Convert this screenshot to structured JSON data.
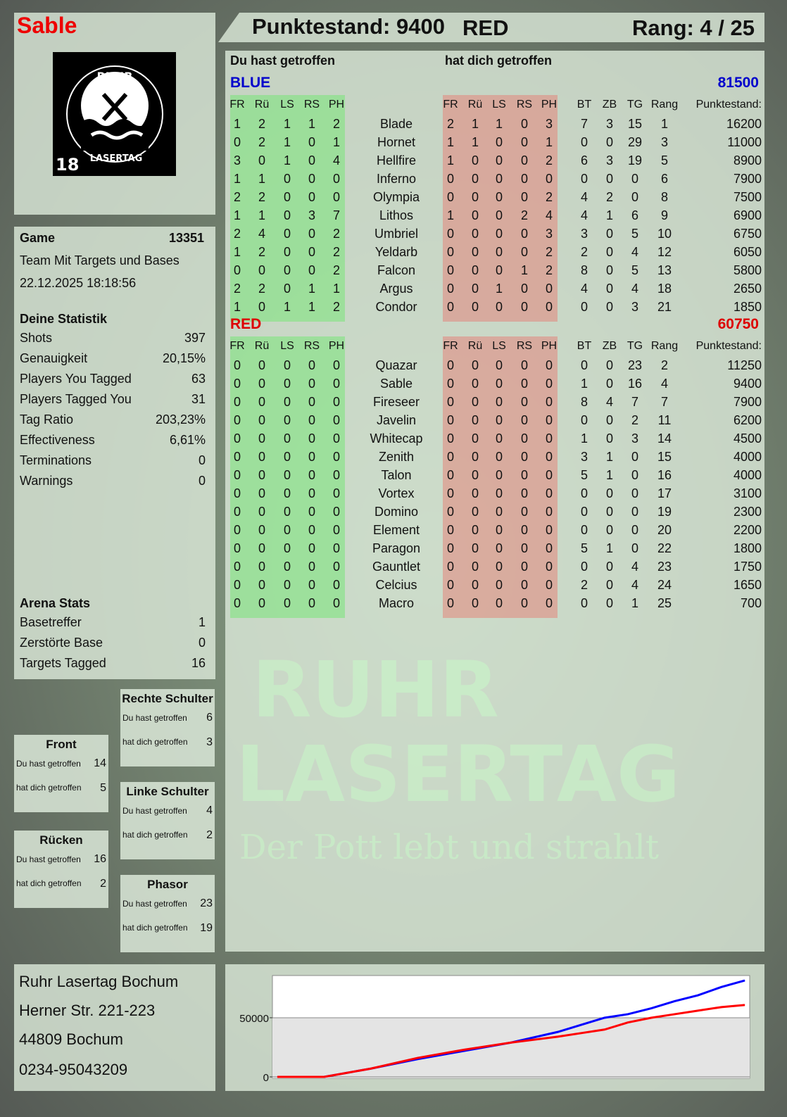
{
  "player": {
    "name": "Sable",
    "score_label": "Punktestand: 9400",
    "team": "RED",
    "rank_label": "Rang: 4 / 25"
  },
  "logo": {
    "text": "RUHR LASERTAG",
    "age": "18"
  },
  "watermark": {
    "line1": "RUHR",
    "line2": "LASERTAG",
    "line3": "Der Pott lebt und strahlt"
  },
  "game": {
    "label": "Game",
    "id": "13351",
    "mode": "Team Mit Targets und Bases",
    "datetime": "22.12.2025 18:18:56"
  },
  "stats": {
    "title": "Deine Statistik",
    "items": [
      {
        "label": "Shots",
        "value": "397"
      },
      {
        "label": "Genauigkeit",
        "value": "20,15%"
      },
      {
        "label": "Players You Tagged",
        "value": "63"
      },
      {
        "label": "Players Tagged You",
        "value": "31"
      },
      {
        "label": "Tag Ratio",
        "value": "203,23%"
      },
      {
        "label": "Effectiveness",
        "value": "6,61%"
      },
      {
        "label": "Terminations",
        "value": "0"
      },
      {
        "label": "Warnings",
        "value": "0"
      }
    ]
  },
  "arena": {
    "title": "Arena Stats",
    "items": [
      {
        "label": "Basetreffer",
        "value": "1"
      },
      {
        "label": "Zerstörte Base",
        "value": "0"
      },
      {
        "label": "Targets Tagged",
        "value": "16"
      }
    ]
  },
  "body_parts": [
    {
      "title": "Rechte Schulter",
      "hit_label": "Du hast getroffen",
      "hit": "6",
      "got_label": "hat dich getroffen",
      "got": "3"
    },
    {
      "title": "Front",
      "hit_label": "Du hast getroffen",
      "hit": "14",
      "got_label": "hat dich getroffen",
      "got": "5"
    },
    {
      "title": "Linke Schulter",
      "hit_label": "Du hast getroffen",
      "hit": "4",
      "got_label": "hat dich getroffen",
      "got": "2"
    },
    {
      "title": "Rücken",
      "hit_label": "Du hast getroffen",
      "hit": "16",
      "got_label": "hat dich getroffen",
      "got": "2"
    },
    {
      "title": "Phasor",
      "hit_label": "Du hast getroffen",
      "hit": "23",
      "got_label": "hat dich getroffen",
      "got": "19"
    }
  ],
  "address": [
    "Ruhr Lasertag Bochum",
    "Herner Str. 221-223",
    "44809 Bochum",
    "0234-95043209"
  ],
  "table": {
    "you_hit": "Du hast getroffen",
    "hit_you": "hat dich getroffen",
    "columns": [
      "FR",
      "Rü",
      "LS",
      "RS",
      "PH",
      "",
      "FR",
      "Rü",
      "LS",
      "RS",
      "PH",
      "BT",
      "ZB",
      "TG",
      "Rang",
      "Punktestand:"
    ],
    "teams": [
      {
        "name": "BLUE",
        "total": "81500",
        "color": "#0000cc",
        "rows": [
          [
            "1",
            "2",
            "1",
            "1",
            "2",
            "Blade",
            "2",
            "1",
            "1",
            "0",
            "3",
            "7",
            "3",
            "15",
            "1",
            "16200"
          ],
          [
            "0",
            "2",
            "1",
            "0",
            "1",
            "Hornet",
            "1",
            "1",
            "0",
            "0",
            "1",
            "0",
            "0",
            "29",
            "3",
            "11000"
          ],
          [
            "3",
            "0",
            "1",
            "0",
            "4",
            "Hellfire",
            "1",
            "0",
            "0",
            "0",
            "2",
            "6",
            "3",
            "19",
            "5",
            "8900"
          ],
          [
            "1",
            "1",
            "0",
            "0",
            "0",
            "Inferno",
            "0",
            "0",
            "0",
            "0",
            "0",
            "0",
            "0",
            "0",
            "6",
            "7900"
          ],
          [
            "2",
            "2",
            "0",
            "0",
            "0",
            "Olympia",
            "0",
            "0",
            "0",
            "0",
            "2",
            "4",
            "2",
            "0",
            "8",
            "7500"
          ],
          [
            "1",
            "1",
            "0",
            "3",
            "7",
            "Lithos",
            "1",
            "0",
            "0",
            "2",
            "4",
            "4",
            "1",
            "6",
            "9",
            "6900"
          ],
          [
            "2",
            "4",
            "0",
            "0",
            "2",
            "Umbriel",
            "0",
            "0",
            "0",
            "0",
            "3",
            "3",
            "0",
            "5",
            "10",
            "6750"
          ],
          [
            "1",
            "2",
            "0",
            "0",
            "2",
            "Yeldarb",
            "0",
            "0",
            "0",
            "0",
            "2",
            "2",
            "0",
            "4",
            "12",
            "6050"
          ],
          [
            "0",
            "0",
            "0",
            "0",
            "2",
            "Falcon",
            "0",
            "0",
            "0",
            "1",
            "2",
            "8",
            "0",
            "5",
            "13",
            "5800"
          ],
          [
            "2",
            "2",
            "0",
            "1",
            "1",
            "Argus",
            "0",
            "0",
            "1",
            "0",
            "0",
            "4",
            "0",
            "4",
            "18",
            "2650"
          ],
          [
            "1",
            "0",
            "1",
            "1",
            "2",
            "Condor",
            "0",
            "0",
            "0",
            "0",
            "0",
            "0",
            "0",
            "3",
            "21",
            "1850"
          ]
        ]
      },
      {
        "name": "RED",
        "total": "60750",
        "color": "#dd0000",
        "rows": [
          [
            "0",
            "0",
            "0",
            "0",
            "0",
            "Quazar",
            "0",
            "0",
            "0",
            "0",
            "0",
            "0",
            "0",
            "23",
            "2",
            "11250"
          ],
          [
            "0",
            "0",
            "0",
            "0",
            "0",
            "Sable",
            "0",
            "0",
            "0",
            "0",
            "0",
            "1",
            "0",
            "16",
            "4",
            "9400"
          ],
          [
            "0",
            "0",
            "0",
            "0",
            "0",
            "Fireseer",
            "0",
            "0",
            "0",
            "0",
            "0",
            "8",
            "4",
            "7",
            "7",
            "7900"
          ],
          [
            "0",
            "0",
            "0",
            "0",
            "0",
            "Javelin",
            "0",
            "0",
            "0",
            "0",
            "0",
            "0",
            "0",
            "2",
            "11",
            "6200"
          ],
          [
            "0",
            "0",
            "0",
            "0",
            "0",
            "Whitecap",
            "0",
            "0",
            "0",
            "0",
            "0",
            "1",
            "0",
            "3",
            "14",
            "4500"
          ],
          [
            "0",
            "0",
            "0",
            "0",
            "0",
            "Zenith",
            "0",
            "0",
            "0",
            "0",
            "0",
            "3",
            "1",
            "0",
            "15",
            "4000"
          ],
          [
            "0",
            "0",
            "0",
            "0",
            "0",
            "Talon",
            "0",
            "0",
            "0",
            "0",
            "0",
            "5",
            "1",
            "0",
            "16",
            "4000"
          ],
          [
            "0",
            "0",
            "0",
            "0",
            "0",
            "Vortex",
            "0",
            "0",
            "0",
            "0",
            "0",
            "0",
            "0",
            "0",
            "17",
            "3100"
          ],
          [
            "0",
            "0",
            "0",
            "0",
            "0",
            "Domino",
            "0",
            "0",
            "0",
            "0",
            "0",
            "0",
            "0",
            "0",
            "19",
            "2300"
          ],
          [
            "0",
            "0",
            "0",
            "0",
            "0",
            "Element",
            "0",
            "0",
            "0",
            "0",
            "0",
            "0",
            "0",
            "0",
            "20",
            "2200"
          ],
          [
            "0",
            "0",
            "0",
            "0",
            "0",
            "Paragon",
            "0",
            "0",
            "0",
            "0",
            "0",
            "5",
            "1",
            "0",
            "22",
            "1800"
          ],
          [
            "0",
            "0",
            "0",
            "0",
            "0",
            "Gauntlet",
            "0",
            "0",
            "0",
            "0",
            "0",
            "0",
            "0",
            "4",
            "23",
            "1750"
          ],
          [
            "0",
            "0",
            "0",
            "0",
            "0",
            "Celcius",
            "0",
            "0",
            "0",
            "0",
            "0",
            "2",
            "0",
            "4",
            "24",
            "1650"
          ],
          [
            "0",
            "0",
            "0",
            "0",
            "0",
            "Macro",
            "0",
            "0",
            "0",
            "0",
            "0",
            "0",
            "0",
            "1",
            "25",
            "700"
          ]
        ]
      }
    ]
  },
  "chart_data": {
    "type": "line",
    "ylim": [
      0,
      84500
    ],
    "yticks": [
      0,
      50000
    ],
    "ytick_labels": [
      "0",
      "50000"
    ],
    "grid": true,
    "x": [
      0,
      2,
      4,
      6,
      8,
      10,
      12,
      13,
      14,
      15,
      16,
      17,
      18,
      19,
      20
    ],
    "series": [
      {
        "color": "#0000ff",
        "values": [
          0,
          0,
          7000,
          15000,
          22000,
          29000,
          38000,
          44000,
          50000,
          53000,
          58000,
          64000,
          69000,
          76000,
          81500
        ]
      },
      {
        "color": "#ff0000",
        "values": [
          0,
          0,
          7000,
          16000,
          23000,
          29000,
          34000,
          37000,
          40000,
          46000,
          50000,
          53000,
          56000,
          59000,
          60750
        ]
      }
    ]
  }
}
